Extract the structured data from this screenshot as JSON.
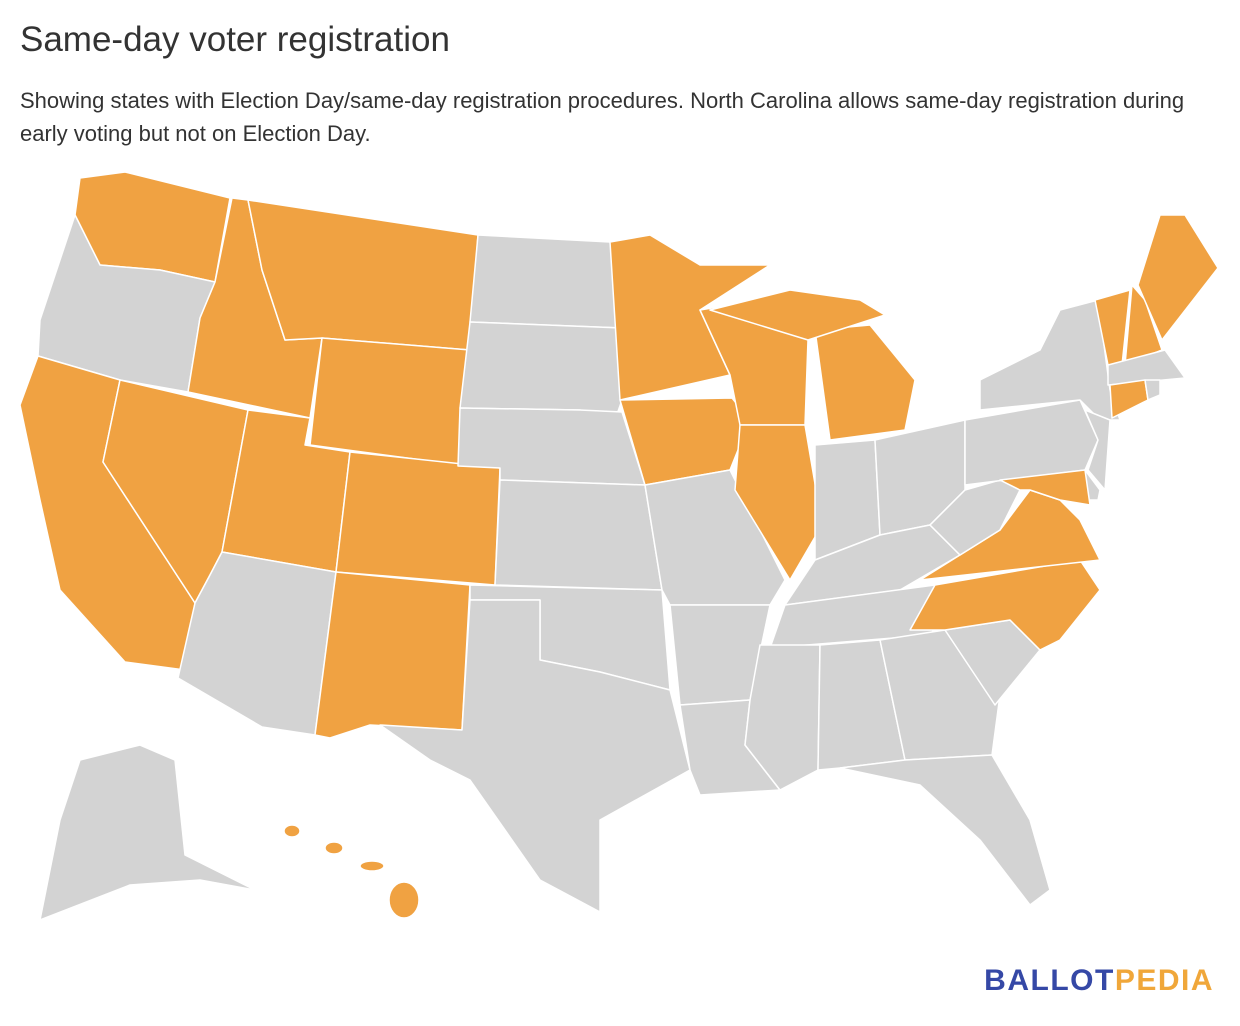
{
  "title": "Same-day voter registration",
  "subtitle": "Showing states with Election Day/same-day registration procedures. North Carolina allows same-day registration during early voting but not on Election Day.",
  "colors": {
    "same_day": "#F0A242",
    "no_same_day": "#D3D3D3",
    "border": "#FFFFFF"
  },
  "states": {
    "WA": true,
    "OR": false,
    "CA": true,
    "NV": true,
    "ID": true,
    "MT": true,
    "WY": true,
    "UT": true,
    "CO": true,
    "AZ": false,
    "NM": true,
    "ND": false,
    "SD": false,
    "NE": false,
    "KS": false,
    "OK": false,
    "TX": false,
    "MN": true,
    "IA": true,
    "MO": false,
    "AR": false,
    "LA": false,
    "WI": true,
    "IL": true,
    "MI": true,
    "IN": false,
    "OH": false,
    "KY": false,
    "TN": false,
    "MS": false,
    "AL": false,
    "GA": false,
    "FL": false,
    "SC": false,
    "NC": true,
    "VA": true,
    "WV": false,
    "PA": false,
    "NY": false,
    "VT": true,
    "NH": true,
    "ME": true,
    "MA": false,
    "CT": true,
    "RI": false,
    "NJ": false,
    "DE": false,
    "MD": true,
    "DC": true,
    "AK": false,
    "HI": true
  },
  "logo": {
    "part1": "BALLOT",
    "part2": "PEDIA"
  }
}
